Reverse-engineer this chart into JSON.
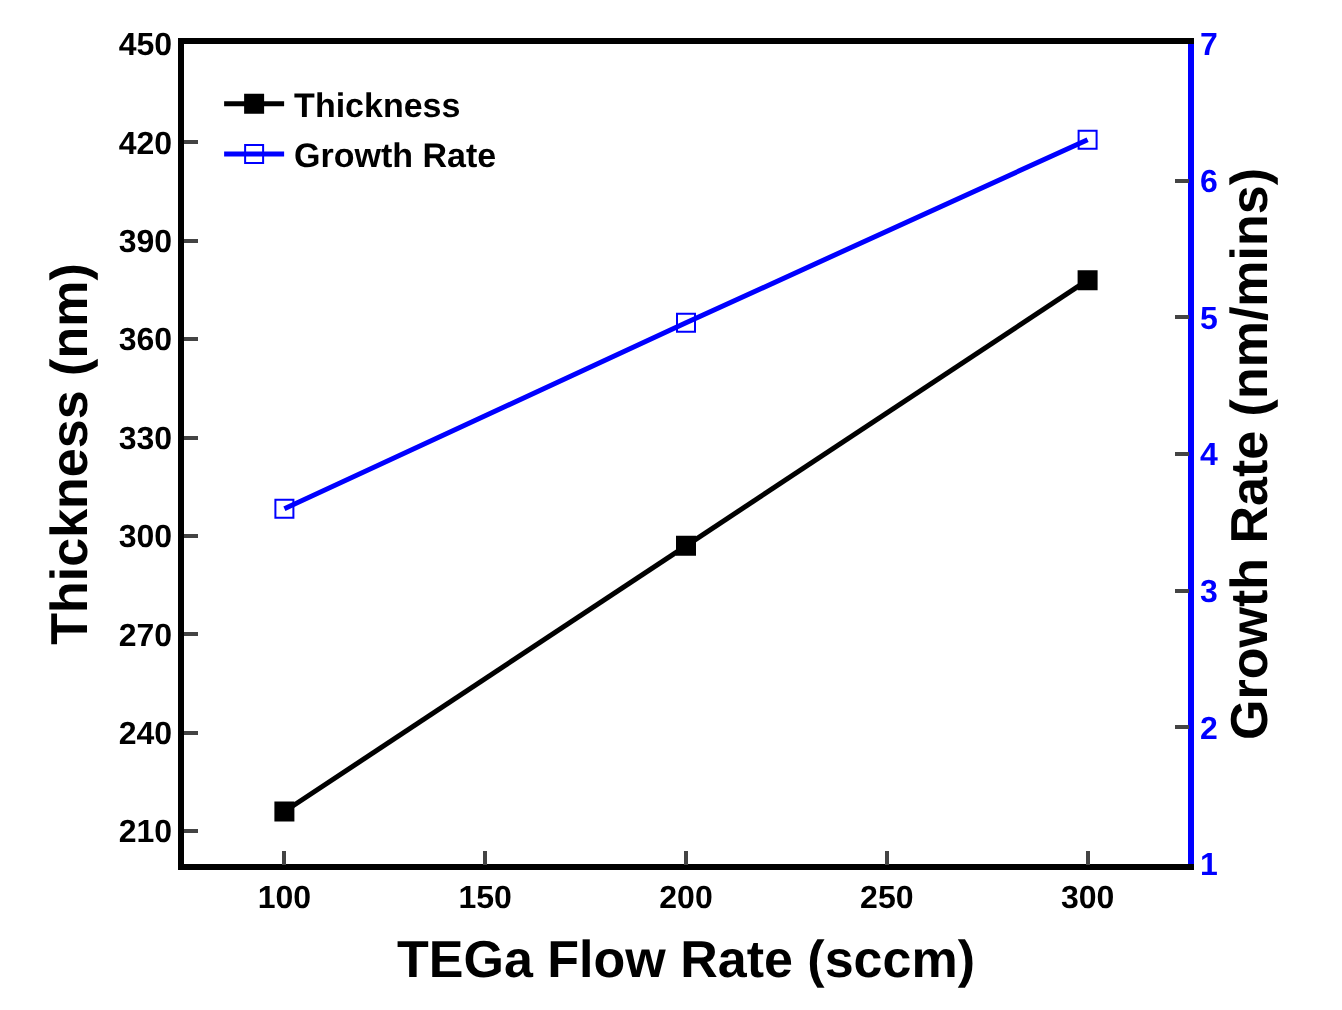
{
  "chart_data": {
    "type": "line",
    "xlabel": "TEGa Flow Rate (sccm)",
    "ylabel": "Thickness (nm)",
    "y2label": "Growth Rate (nm/mins)",
    "x": [
      100,
      200,
      300
    ],
    "series": [
      {
        "name": "Thickness",
        "color": "#000000",
        "values": [
          216,
          297,
          378
        ]
      },
      {
        "name": "Growth Rate",
        "color": "#0000ff",
        "values": [
          3.6,
          4.96,
          6.3
        ],
        "axis": "y2"
      }
    ],
    "xlim": [
      75,
      325
    ],
    "xticks": [
      100,
      150,
      200,
      250,
      300
    ],
    "ylim": [
      200,
      450
    ],
    "yticks": [
      210,
      240,
      270,
      300,
      330,
      360,
      390,
      420,
      450
    ],
    "y2lim": [
      1,
      7
    ],
    "y2ticks": [
      1,
      2,
      3,
      4,
      5,
      6,
      7
    ],
    "legend": "top left",
    "marker": "square",
    "line_style": "solid"
  }
}
